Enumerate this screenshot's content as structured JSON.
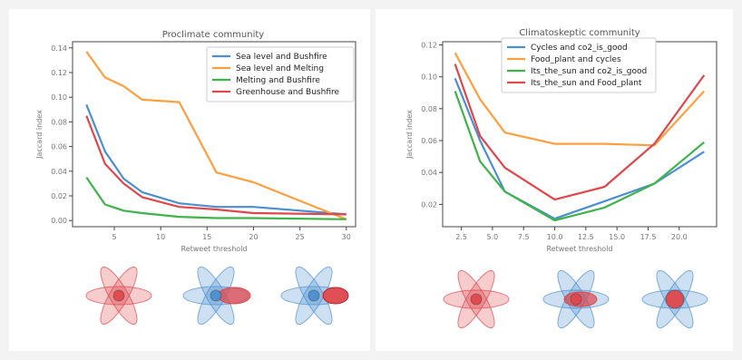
{
  "chart_data": [
    {
      "type": "line",
      "title": "Proclimate community",
      "xlabel": "Retweet threshold",
      "ylabel": "Jaccard index",
      "x": [
        2,
        4,
        6,
        8,
        12,
        16,
        20,
        30
      ],
      "xlim": [
        0.5,
        31
      ],
      "xticks": [
        5,
        10,
        15,
        20,
        25,
        30
      ],
      "ylim": [
        -0.005,
        0.145
      ],
      "yticks": [
        0.0,
        0.02,
        0.04,
        0.06,
        0.08,
        0.1,
        0.12,
        0.14
      ],
      "ytick_labels": [
        "0.00",
        "0.02",
        "0.04",
        "0.06",
        "0.08",
        "0.10",
        "0.12",
        "0.14"
      ],
      "legend": "top-right",
      "grid": false,
      "series": [
        {
          "name": "Sea level and Bushfire",
          "color": "#4c8fd1",
          "values": [
            0.094,
            0.056,
            0.034,
            0.023,
            0.014,
            0.011,
            0.011,
            0.005
          ]
        },
        {
          "name": "Sea level and Melting",
          "color": "#ff9f3f",
          "values": [
            0.137,
            0.116,
            0.109,
            0.098,
            0.096,
            0.039,
            0.031,
            0.001
          ]
        },
        {
          "name": "Melting and Bushfire",
          "color": "#3fb34a",
          "values": [
            0.035,
            0.013,
            0.008,
            0.006,
            0.003,
            0.002,
            0.002,
            0.001
          ]
        },
        {
          "name": "Greenhouse and Bushfire",
          "color": "#e0474c",
          "values": [
            0.085,
            0.046,
            0.03,
            0.019,
            0.011,
            0.009,
            0.006,
            0.005
          ]
        }
      ]
    },
    {
      "type": "line",
      "title": "Climatoskeptic community",
      "xlabel": "Retweet threshold",
      "ylabel": "Jaccard index",
      "x": [
        2,
        4,
        6,
        10,
        14,
        18,
        22
      ],
      "xlim": [
        1,
        23
      ],
      "xticks": [
        2.5,
        5.0,
        7.5,
        10.0,
        12.5,
        15.0,
        17.5,
        20.0
      ],
      "xtick_labels": [
        "2.5",
        "5.0",
        "7.5",
        "10.0",
        "12.5",
        "15.0",
        "17.5",
        "20.0"
      ],
      "ylim": [
        0.006,
        0.122
      ],
      "yticks": [
        0.02,
        0.04,
        0.06,
        0.08,
        0.1,
        0.12
      ],
      "ytick_labels": [
        "0.02",
        "0.04",
        "0.06",
        "0.08",
        "0.10",
        "0.12"
      ],
      "legend": "top-center",
      "grid": false,
      "series": [
        {
          "name": "Cycles and co2_is_good",
          "color": "#4c8fd1",
          "values": [
            0.099,
            0.06,
            0.028,
            0.011,
            0.022,
            0.033,
            0.053
          ]
        },
        {
          "name": "Food_plant and cycles",
          "color": "#ff9f3f",
          "values": [
            0.115,
            0.086,
            0.065,
            0.058,
            0.058,
            0.057,
            0.091
          ]
        },
        {
          "name": "Its_the_sun and co2_is_good",
          "color": "#3fb34a",
          "values": [
            0.091,
            0.047,
            0.028,
            0.01,
            0.018,
            0.033,
            0.059
          ]
        },
        {
          "name": "Its_the_sun and Food_plant",
          "color": "#e0474c",
          "values": [
            0.108,
            0.063,
            0.043,
            0.023,
            0.031,
            0.058,
            0.101
          ]
        }
      ]
    }
  ],
  "flower_icons": {
    "red": "#e0474c",
    "blue": "#4c8fd1",
    "names": [
      "red-flower-icon",
      "blue-flower-half-red-icon",
      "blue-flower-red-petal-icon",
      "red-flower-icon",
      "blue-flower-red-core-icon",
      "blue-flower-red-center-icon"
    ]
  }
}
